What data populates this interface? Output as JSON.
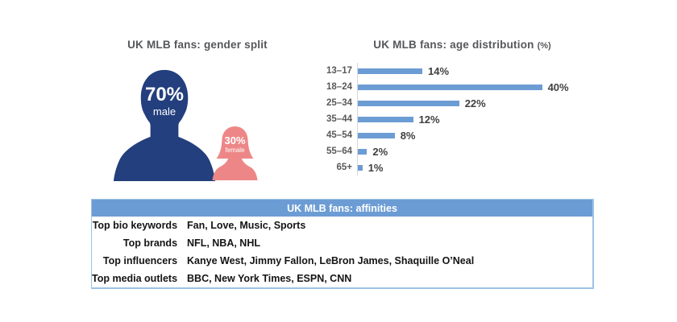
{
  "gender": {
    "title": "UK MLB fans: gender split",
    "male": {
      "pct": "70%",
      "label": "male"
    },
    "female": {
      "pct": "30%",
      "label": "female"
    }
  },
  "chart_data": {
    "type": "bar",
    "orientation": "horizontal",
    "title": "UK MLB fans: age distribution",
    "title_suffix": "(%)",
    "categories": [
      "13–17",
      "18–24",
      "25–34",
      "35–44",
      "45–54",
      "55–64",
      "65+"
    ],
    "values": [
      14,
      40,
      22,
      12,
      8,
      2,
      1
    ],
    "value_labels": [
      "14%",
      "40%",
      "22%",
      "12%",
      "8%",
      "2%",
      "1%"
    ],
    "xlim": [
      0,
      42
    ],
    "grid": false,
    "legend": false,
    "bar_color": "#6c9cd4"
  },
  "affinities": {
    "title": "UK MLB fans: affinities",
    "rows": [
      {
        "label": "Top bio keywords",
        "value": "Fan, Love, Music, Sports"
      },
      {
        "label": "Top brands",
        "value": "NFL, NBA, NHL"
      },
      {
        "label": "Top influencers",
        "value": "Kanye West, Jimmy Fallon, LeBron James, Shaquille O’Neal"
      },
      {
        "label": "Top media outlets",
        "value": "BBC, New York Times, ESPN, CNN"
      }
    ]
  },
  "colors": {
    "male_fill": "#233f7d",
    "female_fill": "#ed8787",
    "bar_fill": "#6c9cd4",
    "table_header_bg": "#6c9cd4",
    "table_border": "#9dc3e6"
  }
}
